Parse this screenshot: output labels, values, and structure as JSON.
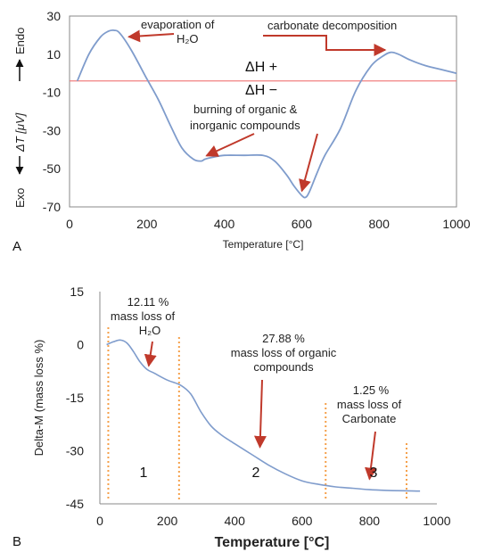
{
  "colors": {
    "curve": "#7f9ccc",
    "arrow": "#c0392b",
    "refline": "#f08080",
    "vline": "#f5a04a",
    "axis": "#888888"
  },
  "chart_data": [
    {
      "panel": "A",
      "type": "line",
      "xlabel": "Temperature  [°C]",
      "ylabel_parts": {
        "exo": "Exo",
        "mid": "ΔT [μV]",
        "endo": "Endo"
      },
      "xlim": [
        0,
        1000
      ],
      "ylim": [
        -70,
        30
      ],
      "xticks": [
        "0",
        "200",
        "400",
        "600",
        "800",
        "1000"
      ],
      "yticks": [
        "30",
        "10",
        "-10",
        "-30",
        "-50",
        "-70"
      ],
      "reference_line_y": -4,
      "reference_labels": [
        "ΔH +",
        "ΔH −"
      ],
      "series": [
        {
          "x": [
            20,
            50,
            80,
            100,
            115,
            130,
            160,
            200,
            230,
            260,
            290,
            320,
            340,
            350,
            370,
            400,
            450,
            500,
            530,
            560,
            580,
            600,
            610,
            620,
            640,
            660,
            700,
            740,
            780,
            810,
            830,
            850,
            880,
            920,
            960,
            1000
          ],
          "y": [
            -4,
            10,
            19,
            22,
            22.5,
            21,
            12,
            -3,
            -14,
            -27,
            -39,
            -45,
            -46,
            -45,
            -44,
            -43,
            -43,
            -43,
            -46,
            -53,
            -59,
            -64,
            -65,
            -62,
            -52,
            -43,
            -29,
            -9,
            4,
            9,
            11,
            10,
            7,
            4,
            2,
            0
          ]
        }
      ],
      "annotations": [
        {
          "lines": [
            "evaporation of",
            "H₂O"
          ],
          "arrow_to": [
            130,
            21
          ]
        },
        {
          "lines": [
            "carbonate decomposition"
          ],
          "arrow_to": [
            825,
            10
          ]
        },
        {
          "lines": [
            "burning of organic &",
            "inorganic compounds"
          ],
          "arrow_to": [
            340,
            -46
          ]
        },
        {
          "lines": [
            ""
          ],
          "arrow_to": [
            605,
            -64
          ]
        }
      ]
    },
    {
      "panel": "B",
      "type": "line",
      "xlabel": "Temperature  [°C]",
      "ylabel": "Delta-M (mass loss %)",
      "xlim": [
        0,
        1000
      ],
      "ylim": [
        -45,
        15
      ],
      "xticks": [
        "0",
        "200",
        "400",
        "600",
        "800",
        "1000"
      ],
      "yticks": [
        "15",
        "0",
        "-15",
        "-30",
        "-45"
      ],
      "region_boundaries_x": [
        25,
        235,
        670,
        910
      ],
      "regions": [
        "1",
        "2",
        "3"
      ],
      "series": [
        {
          "x": [
            20,
            40,
            60,
            80,
            100,
            120,
            140,
            160,
            200,
            240,
            270,
            300,
            330,
            360,
            400,
            450,
            500,
            550,
            600,
            650,
            700,
            750,
            800,
            850,
            900,
            950
          ],
          "y": [
            0,
            0.8,
            1.3,
            0.5,
            -2,
            -5,
            -7,
            -8,
            -10,
            -11.5,
            -14,
            -19,
            -23,
            -25.5,
            -28,
            -31,
            -34,
            -36.5,
            -38.5,
            -39.5,
            -40.2,
            -40.6,
            -41,
            -41.2,
            -41.3,
            -41.4
          ]
        }
      ],
      "annotations": [
        {
          "lines": [
            "12.11 %",
            "mass loss of",
            "H₂O"
          ],
          "arrow_to": [
            145,
            -7
          ]
        },
        {
          "lines": [
            "27.88 %",
            "mass loss of organic",
            "compounds"
          ],
          "arrow_to": [
            475,
            -30
          ]
        },
        {
          "lines": [
            "1.25 %",
            "mass loss of",
            "Carbonate"
          ],
          "arrow_to": [
            800,
            -39
          ]
        }
      ]
    }
  ]
}
